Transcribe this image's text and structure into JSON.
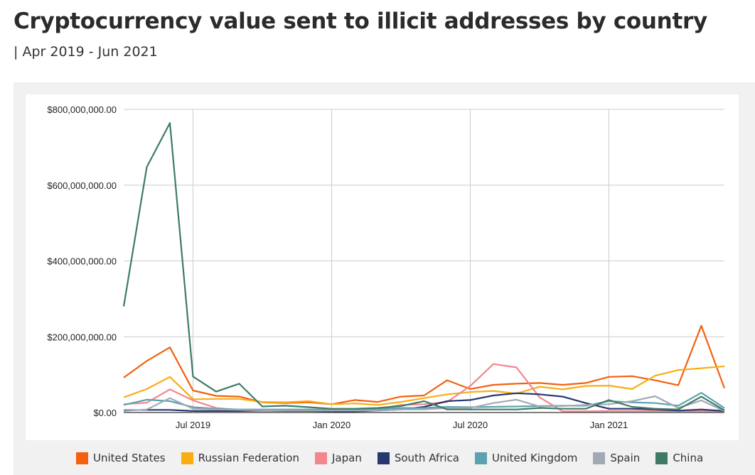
{
  "page": {
    "title": "Cryptocurrency value sent to illicit addresses by country",
    "subtitle": "| Apr 2019 - Jun 2021"
  },
  "chart_data": {
    "type": "line",
    "x": [
      "2019-04",
      "2019-05",
      "2019-06",
      "2019-07",
      "2019-08",
      "2019-09",
      "2019-10",
      "2019-11",
      "2019-12",
      "2020-01",
      "2020-02",
      "2020-03",
      "2020-04",
      "2020-05",
      "2020-06",
      "2020-07",
      "2020-08",
      "2020-09",
      "2020-10",
      "2020-11",
      "2020-12",
      "2021-01",
      "2021-02",
      "2021-03",
      "2021-04",
      "2021-05",
      "2021-06"
    ],
    "xticks": [
      {
        "x": "2019-07",
        "label": "Jul 2019"
      },
      {
        "x": "2020-01",
        "label": "Jan 2020"
      },
      {
        "x": "2020-07",
        "label": "Jul 2020"
      },
      {
        "x": "2021-01",
        "label": "Jan 2021"
      }
    ],
    "yticks": [
      {
        "value": 0,
        "label": "$0.00"
      },
      {
        "value": 200000000,
        "label": "$200,000,000.00"
      },
      {
        "value": 400000000,
        "label": "$400,000,000.00"
      },
      {
        "value": 600000000,
        "label": "$600,000,000.00"
      },
      {
        "value": 800000000,
        "label": "$800,000,000.00"
      }
    ],
    "ylim": [
      0,
      800000000
    ],
    "grid": true,
    "legend_position": "bottom",
    "series": [
      {
        "name": "United States",
        "color": "#f4600f",
        "values": [
          92000000,
          136000000,
          172000000,
          58000000,
          44000000,
          42000000,
          27000000,
          25000000,
          27000000,
          22000000,
          33000000,
          28000000,
          42000000,
          45000000,
          85000000,
          62000000,
          73000000,
          76000000,
          78000000,
          73000000,
          78000000,
          94000000,
          96000000,
          85000000,
          72000000,
          229000000,
          64000000
        ]
      },
      {
        "name": "Russian Federation",
        "color": "#f9ad14",
        "values": [
          40000000,
          62000000,
          94000000,
          35000000,
          36000000,
          36000000,
          28000000,
          27000000,
          30000000,
          22000000,
          24000000,
          20000000,
          28000000,
          38000000,
          48000000,
          54000000,
          57000000,
          50000000,
          68000000,
          61000000,
          70000000,
          71000000,
          62000000,
          97000000,
          112000000,
          117000000,
          122000000
        ]
      },
      {
        "name": "Japan",
        "color": "#f1868f",
        "values": [
          22000000,
          26000000,
          61000000,
          32000000,
          12000000,
          7000000,
          6000000,
          5000000,
          5000000,
          5000000,
          7000000,
          10000000,
          20000000,
          22000000,
          28000000,
          70000000,
          128000000,
          119000000,
          40000000,
          3000000,
          3000000,
          4000000,
          4000000,
          4000000,
          4000000,
          4000000,
          3000000
        ]
      },
      {
        "name": "South Africa",
        "color": "#283770",
        "values": [
          6000000,
          7000000,
          7000000,
          4000000,
          4000000,
          4000000,
          5000000,
          4000000,
          4000000,
          3000000,
          3000000,
          5000000,
          8000000,
          15000000,
          30000000,
          33000000,
          45000000,
          51000000,
          48000000,
          42000000,
          25000000,
          10000000,
          10000000,
          8000000,
          5000000,
          8000000,
          4000000
        ]
      },
      {
        "name": "United Kingdom",
        "color": "#5ba2b0",
        "values": [
          20000000,
          34000000,
          30000000,
          14000000,
          10000000,
          8000000,
          8000000,
          8000000,
          8000000,
          8000000,
          8000000,
          9000000,
          12000000,
          12000000,
          15000000,
          14000000,
          15000000,
          16000000,
          17000000,
          18000000,
          18000000,
          30000000,
          27000000,
          25000000,
          18000000,
          52000000,
          12000000
        ]
      },
      {
        "name": "Spain",
        "color": "#a3a9b4",
        "values": [
          4000000,
          8000000,
          38000000,
          10000000,
          8000000,
          7000000,
          6000000,
          5000000,
          5000000,
          5000000,
          5000000,
          5000000,
          8000000,
          8000000,
          12000000,
          12000000,
          25000000,
          34000000,
          16000000,
          17000000,
          20000000,
          22000000,
          30000000,
          43000000,
          12000000,
          32000000,
          4000000
        ]
      },
      {
        "name": "China",
        "color": "#3e7b67",
        "values": [
          280000000,
          648000000,
          764000000,
          95000000,
          55000000,
          76000000,
          16000000,
          18000000,
          14000000,
          10000000,
          10000000,
          12000000,
          17000000,
          30000000,
          8000000,
          8000000,
          8000000,
          8000000,
          12000000,
          10000000,
          10000000,
          33000000,
          15000000,
          10000000,
          8000000,
          42000000,
          6000000
        ]
      }
    ]
  }
}
